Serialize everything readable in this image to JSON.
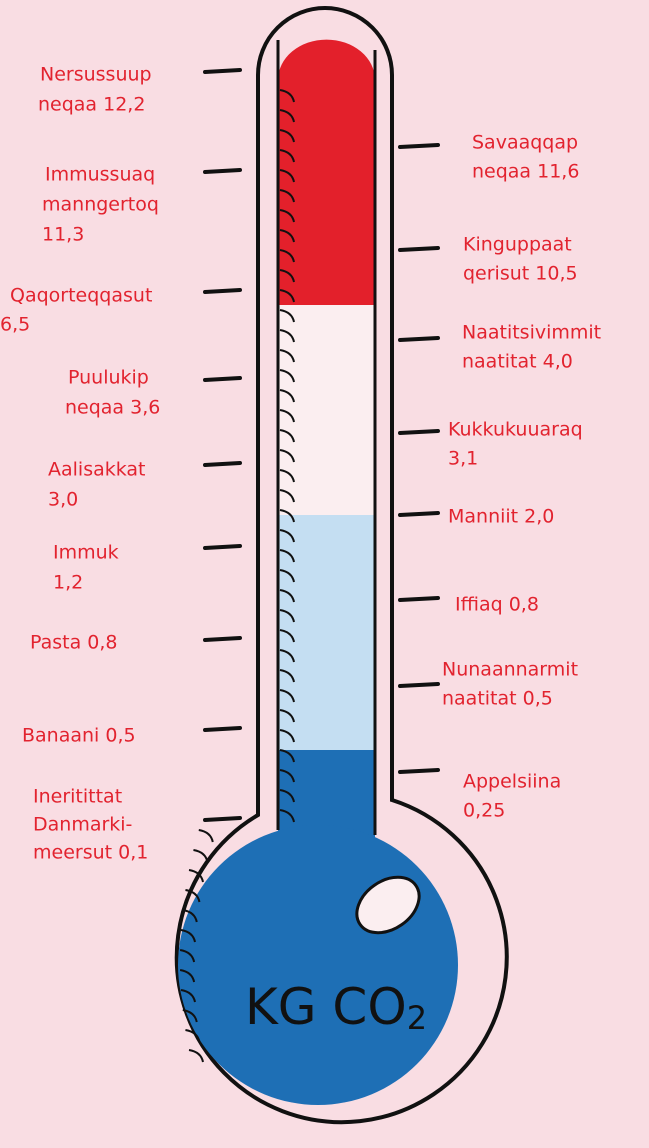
{
  "left": [
    {
      "lines": [
        "Nersussuup",
        "neqaa 12,2"
      ]
    },
    {
      "lines": [
        "Immussuaq",
        "manngertoq",
        "11,3"
      ]
    },
    {
      "lines": [
        "Qaqorteqqasut",
        "6,5"
      ]
    },
    {
      "lines": [
        "Puulukip",
        "neqaa 3,6"
      ]
    },
    {
      "lines": [
        "Aalisakkat",
        "3,0"
      ]
    },
    {
      "lines": [
        "Immuk",
        "1,2"
      ]
    },
    {
      "lines": [
        "Pasta 0,8"
      ]
    },
    {
      "lines": [
        "Banaani 0,5"
      ]
    },
    {
      "lines": [
        "Ineritittat",
        "Danmarki-",
        "meersut 0,1"
      ]
    }
  ],
  "right": [
    {
      "lines": [
        "Savaaqqap",
        "neqaa 11,6"
      ]
    },
    {
      "lines": [
        "Kinguppaat",
        "qerisut 10,5"
      ]
    },
    {
      "lines": [
        "Naatitsivimmit",
        "naatitat 4,0"
      ]
    },
    {
      "lines": [
        "Kukkukuuaraq",
        "3,1"
      ]
    },
    {
      "lines": [
        "Manniit 2,0"
      ]
    },
    {
      "lines": [
        "Iffiaq 0,8"
      ]
    },
    {
      "lines": [
        "Nunaannarmit",
        "naatitat 0,5"
      ]
    },
    {
      "lines": [
        "Appelsiina",
        "0,25"
      ]
    }
  ],
  "bulb": {
    "main": "KG CO",
    "sub": "2"
  }
}
